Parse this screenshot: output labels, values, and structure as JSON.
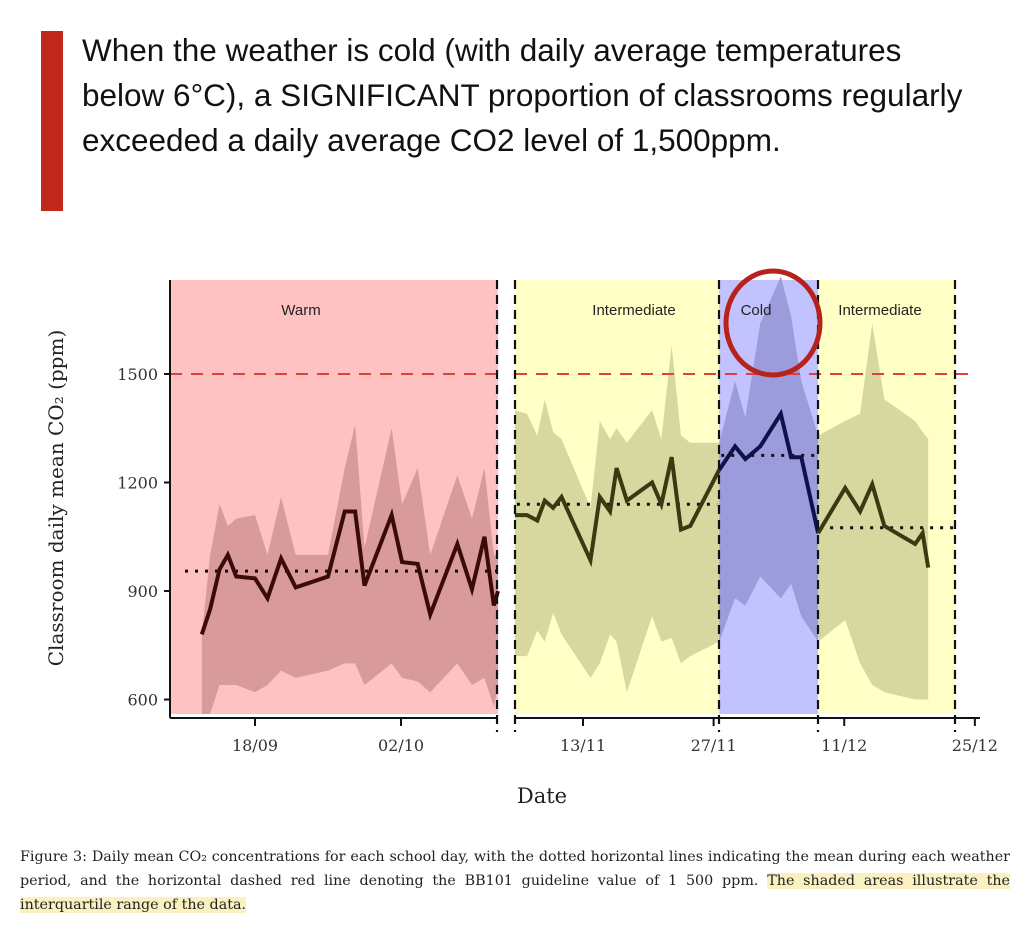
{
  "headline": "When the weather is cold (with daily average temperatures below 6°C), a SIGNIFICANT proportion of classrooms regularly exceeded a daily average CO2 level of 1,500ppm.",
  "caption": {
    "part1": "Figure 3: Daily mean CO₂ concentrations for each school day, with the dotted horizontal lines indicating the mean during each weather period, and the horizontal dashed red line denoting the BB101 guideline value of 1 500 ppm.",
    "part2": "The shaded areas illustrate the interquartile range of the data."
  },
  "chart_data": {
    "type": "line",
    "xlabel": "Date",
    "ylabel": "Classroom daily mean CO₂ (ppm)",
    "ylim": [
      560,
      1760
    ],
    "yticks": [
      600,
      900,
      1200,
      1500
    ],
    "xticks": [
      {
        "day": 261,
        "label": "18/09"
      },
      {
        "day": 275,
        "label": "02/10"
      },
      {
        "day": 317,
        "label": "13/11"
      },
      {
        "day": 331,
        "label": "27/11"
      },
      {
        "day": 345,
        "label": "11/12"
      },
      {
        "day": 359,
        "label": "25/12"
      }
    ],
    "guideline": {
      "value": 1500,
      "label": "BB101 guideline",
      "color": "#e0403a"
    },
    "highlight_color": "#b5231c",
    "periods": [
      {
        "name": "Warm",
        "start": 254.5,
        "end": 284.3,
        "mean": 955,
        "bg": "#ffc2c2",
        "band": "#d89a9a",
        "line": "#3b0b0b",
        "days": [
          255.9,
          256.7,
          257.6,
          258.4,
          259.2,
          261,
          262.2,
          263.5,
          264.9,
          268,
          269.6,
          270.6,
          271.5,
          274.1,
          275.1,
          276.6,
          277.8,
          280.4,
          281.8,
          283,
          283.9,
          284.3
        ],
        "median": [
          780,
          850,
          960,
          1000,
          940,
          935,
          880,
          990,
          910,
          940,
          1120,
          1120,
          915,
          1110,
          980,
          975,
          835,
          1030,
          905,
          1050,
          860,
          900
        ],
        "q3": [
          780,
          1000,
          1140,
          1080,
          1100,
          1110,
          1000,
          1160,
          1000,
          1000,
          1240,
          1360,
          1020,
          1350,
          1140,
          1240,
          1000,
          1220,
          1100,
          1240,
          1000,
          1000
        ],
        "q1": [
          560,
          560,
          640,
          640,
          640,
          620,
          640,
          680,
          660,
          680,
          700,
          700,
          640,
          700,
          660,
          650,
          620,
          700,
          640,
          660,
          580,
          640
        ]
      },
      {
        "name": "Intermediate",
        "start": 309.7,
        "end": 331.6,
        "mean": 1140,
        "bg": "#ffffc6",
        "band": "#d7d7a0",
        "line": "#3a3a12",
        "days": [
          309.7,
          311.0,
          312.1,
          312.9,
          313.8,
          314.7,
          317.8,
          318.8,
          319.9,
          320.6,
          321.7,
          324.4,
          325.4,
          326.5,
          327.5,
          328.5,
          331.6
        ],
        "median": [
          1110,
          1110,
          1095,
          1150,
          1130,
          1160,
          985,
          1160,
          1120,
          1240,
          1150,
          1200,
          1140,
          1270,
          1070,
          1080,
          1235
        ],
        "q3": [
          1400,
          1390,
          1330,
          1430,
          1340,
          1320,
          1130,
          1370,
          1320,
          1350,
          1310,
          1400,
          1320,
          1580,
          1330,
          1310,
          1310
        ],
        "q1": [
          720,
          720,
          790,
          760,
          840,
          780,
          660,
          700,
          780,
          760,
          620,
          830,
          760,
          770,
          700,
          720,
          760
        ]
      },
      {
        "name": "Cold",
        "start": 331.6,
        "end": 342.2,
        "mean": 1275,
        "bg": "#c2c2ff",
        "band": "#9c9cdc",
        "line": "#10104a",
        "days": [
          331.6,
          333.3,
          334.4,
          336.0,
          338.2,
          339.3,
          340.4,
          342.2
        ],
        "median": [
          1235,
          1300,
          1265,
          1300,
          1390,
          1270,
          1270,
          1060
        ],
        "q3": [
          1310,
          1480,
          1380,
          1640,
          1770,
          1660,
          1480,
          1330
        ],
        "q1": [
          760,
          880,
          860,
          940,
          880,
          920,
          830,
          760
        ]
      },
      {
        "name": "Intermediate",
        "start": 342.2,
        "end": 356.9,
        "mean": 1075,
        "bg": "#ffffc6",
        "band": "#d7d7a0",
        "line": "#3a3a12",
        "days": [
          342.2,
          345.1,
          346.7,
          348.0,
          349.3,
          352.6,
          353.4,
          354.0
        ],
        "median": [
          1060,
          1185,
          1120,
          1195,
          1080,
          1030,
          1060,
          965
        ],
        "q3": [
          1330,
          1370,
          1390,
          1640,
          1430,
          1370,
          1340,
          1320
        ],
        "q1": [
          760,
          820,
          700,
          640,
          620,
          600,
          600,
          600
        ]
      }
    ]
  }
}
